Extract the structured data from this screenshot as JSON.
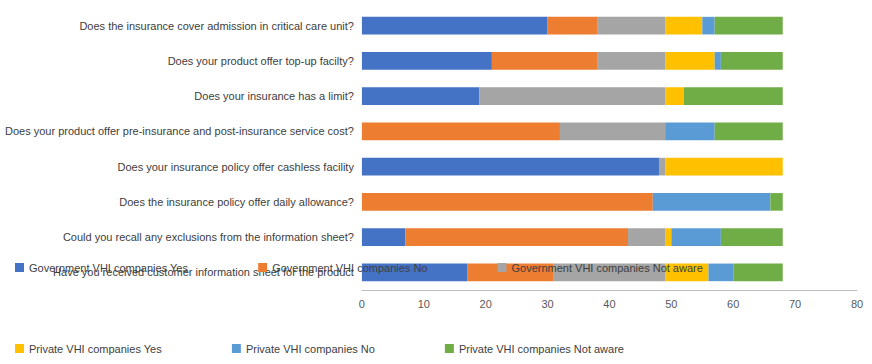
{
  "chart_data": {
    "type": "bar",
    "orientation": "horizontal",
    "stacked": true,
    "grid": false,
    "legend": "bottom",
    "categories": [
      "Have you received customer information sheet for the product",
      "Could you recall any exclusions from the information sheet?",
      "Does the insurance policy offer daily allowance?",
      "Does your insurance policy offer cashless facility",
      "Does your product offer pre-insurance and post-insurance service cost?",
      "Does your insurance has a limit?",
      "Does your product offer top-up facilty?",
      "Does the insurance cover admission in critical care unit?"
    ],
    "series": [
      {
        "name": "Government VHI companies Yes",
        "color": "#4472c4",
        "values": [
          17,
          7,
          0,
          48,
          0,
          19,
          21,
          30
        ]
      },
      {
        "name": "Government VHI companies No",
        "color": "#ed7d31",
        "values": [
          14,
          36,
          47,
          0,
          32,
          0,
          17,
          8
        ]
      },
      {
        "name": "Government VHI companies Not aware",
        "color": "#a5a5a5",
        "values": [
          18,
          6,
          0,
          1,
          17,
          30,
          11,
          11
        ]
      },
      {
        "name": "Private VHI companies Yes",
        "color": "#ffc000",
        "values": [
          7,
          1,
          0,
          19,
          0,
          3,
          8,
          6
        ]
      },
      {
        "name": "Private VHI companies No",
        "color": "#5b9bd5",
        "values": [
          4,
          8,
          19,
          0,
          8,
          0,
          1,
          2
        ]
      },
      {
        "name": "Private VHI companies Not aware",
        "color": "#70ad47",
        "values": [
          8,
          10,
          2,
          0,
          11,
          16,
          10,
          11
        ]
      }
    ],
    "xlim": [
      0,
      80
    ],
    "xticks": [
      0,
      10,
      20,
      30,
      40,
      50,
      60,
      70,
      80
    ]
  }
}
